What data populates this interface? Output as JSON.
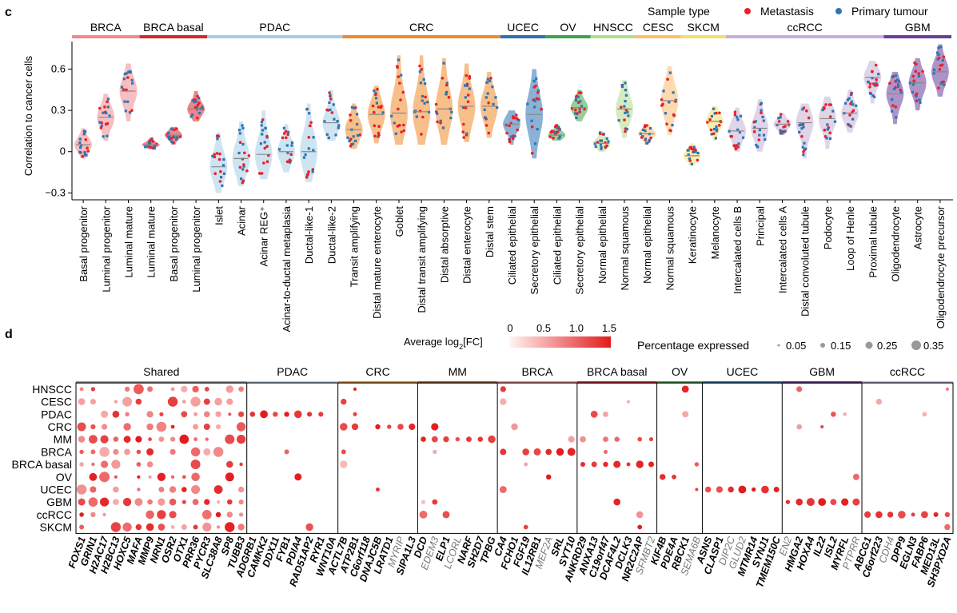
{
  "panel_c": {
    "label": "c"
  },
  "panel_d": {
    "label": "d"
  },
  "legend_c": {
    "title": "Sample type",
    "items": [
      {
        "label": "Metastasis",
        "color": "#e8212a"
      },
      {
        "label": "Primary tumour",
        "color": "#2f75b5"
      }
    ]
  },
  "legend_d": {
    "color_title_pre": "Average log",
    "color_title_sub": "2",
    "color_title_post": "[FC]",
    "color_ticks": [
      "0",
      "0.5",
      "1.0",
      "1.5"
    ],
    "size_title": "Percentage expressed",
    "size_ticks": [
      "0.05",
      "0.15",
      "0.25",
      "0.35"
    ]
  },
  "chart_data": [
    {
      "type": "violin",
      "ylabel": "Correlation to cancer cells",
      "ylim": [
        -0.35,
        0.8
      ],
      "yticks": [
        {
          "value": -0.3,
          "label": "−0.3"
        },
        {
          "value": 0,
          "label": "0"
        },
        {
          "value": 0.3,
          "label": "0.3"
        },
        {
          "value": 0.6,
          "label": "0.6"
        }
      ],
      "groups": [
        {
          "name": "BRCA",
          "color": "#f08a8f",
          "categories": [
            "Basal progenitor",
            "Luminal progenitor",
            "Luminal mature"
          ]
        },
        {
          "name": "BRCA basal",
          "color": "#d7262b",
          "categories": [
            "Luminal mature",
            "Basal progenitor",
            "Luminal progenitor"
          ]
        },
        {
          "name": "PDAC",
          "color": "#a6cde3",
          "categories": [
            "Islet",
            "Acinar",
            "Acinar REG⁺",
            "Acinar-to-ductal metaplasia",
            "Ductal-like-1",
            "Ductal-like-2"
          ]
        },
        {
          "name": "CRC",
          "color": "#f08a28",
          "categories": [
            "Transit amplifying",
            "Distal mature enterocyte",
            "Goblet",
            "Distal transit amplifying",
            "Distal absorptive",
            "Distal enterocyte",
            "Distal stem"
          ]
        },
        {
          "name": "UCEC",
          "color": "#2c73b4",
          "categories": [
            "Ciliated epithelial",
            "Secretory epithelial"
          ]
        },
        {
          "name": "OV",
          "color": "#3ea647",
          "categories": [
            "Ciliated epithelial",
            "Secretory epithelial"
          ]
        },
        {
          "name": "HNSCC",
          "color": "#b2dd8a",
          "categories": [
            "Normal epithelial",
            "Normal squamous"
          ]
        },
        {
          "name": "CESC",
          "color": "#fdbe6e",
          "categories": [
            "Normal epithelial",
            "Normal squamous"
          ]
        },
        {
          "name": "SKCM",
          "color": "#f2e06a",
          "categories": [
            "Keratinocyte",
            "Melanocyte"
          ]
        },
        {
          "name": "ccRCC",
          "color": "#c5b0d5",
          "categories": [
            "Intercalated cells B",
            "Principal",
            "Intercalated cells A",
            "Distal convoluted tubule",
            "Podocyte",
            "Loop of Henle",
            "Proximal tubule"
          ]
        },
        {
          "name": "GBM",
          "color": "#6a3d9a",
          "categories": [
            "Oligodendrocyte",
            "Astrocyte",
            "Oligodendrocyte precursor"
          ]
        }
      ],
      "medians": [
        0.05,
        0.25,
        0.44,
        0.05,
        0.12,
        0.31,
        -0.11,
        -0.05,
        -0.02,
        0.0,
        0.0,
        0.21,
        0.16,
        0.27,
        0.28,
        0.29,
        0.31,
        0.33,
        0.33,
        0.2,
        0.27,
        0.12,
        0.32,
        0.06,
        0.31,
        0.13,
        0.37,
        -0.03,
        0.22,
        0.15,
        0.17,
        0.2,
        0.21,
        0.24,
        0.28,
        0.54,
        0.42,
        0.5,
        0.58
      ],
      "ranges": [
        [
          -0.05,
          0.17
        ],
        [
          0.08,
          0.42
        ],
        [
          0.22,
          0.64
        ],
        [
          0.02,
          0.1
        ],
        [
          0.05,
          0.18
        ],
        [
          0.22,
          0.44
        ],
        [
          -0.3,
          0.14
        ],
        [
          -0.25,
          0.22
        ],
        [
          -0.2,
          0.3
        ],
        [
          -0.15,
          0.2
        ],
        [
          -0.22,
          0.35
        ],
        [
          0.08,
          0.45
        ],
        [
          0.02,
          0.35
        ],
        [
          0.06,
          0.48
        ],
        [
          0.05,
          0.7
        ],
        [
          0.05,
          0.7
        ],
        [
          0.05,
          0.68
        ],
        [
          0.07,
          0.64
        ],
        [
          0.1,
          0.58
        ],
        [
          0.05,
          0.3
        ],
        [
          -0.05,
          0.6
        ],
        [
          0.08,
          0.2
        ],
        [
          0.22,
          0.45
        ],
        [
          0.0,
          0.15
        ],
        [
          0.1,
          0.52
        ],
        [
          0.05,
          0.2
        ],
        [
          0.12,
          0.62
        ],
        [
          -0.1,
          0.06
        ],
        [
          0.08,
          0.33
        ],
        [
          0.0,
          0.32
        ],
        [
          0.0,
          0.38
        ],
        [
          0.12,
          0.28
        ],
        [
          -0.05,
          0.35
        ],
        [
          0.02,
          0.4
        ],
        [
          0.14,
          0.45
        ],
        [
          0.35,
          0.66
        ],
        [
          0.2,
          0.58
        ],
        [
          0.3,
          0.68
        ],
        [
          0.4,
          0.78
        ]
      ]
    },
    {
      "type": "dot-heatmap",
      "rows": [
        "HNSCC",
        "CESC",
        "PDAC",
        "CRC",
        "MM",
        "BRCA",
        "BRCA basal",
        "OV",
        "UCEC",
        "GBM",
        "ccRCC",
        "SKCM"
      ],
      "groups": [
        {
          "name": "Shared",
          "color": "#999999",
          "genes": [
            "FOXS1",
            "GRIN1",
            "H2AC17",
            "H2BC13",
            "HOXC5",
            "MAFA",
            "MMP9",
            "NRN1",
            "OSR2",
            "OTX1",
            "PRR36",
            "PYCR3",
            "SLC38A8",
            "SP8",
            "TUBB3"
          ]
        },
        {
          "name": "PDAC",
          "color": "#a6cde3",
          "genes": [
            "ADGRB1",
            "CAMKK2",
            "DDX11",
            "FYB1",
            "PDIA4",
            "RAD51AP2",
            "RYR1",
            "WNT10A"
          ]
        },
        {
          "name": "CRC",
          "color": "#f08a28",
          "genes": [
            "ACTL7B",
            "ATP2B1",
            "C6orf118",
            "DNAJC5B",
            "LRATD1",
            "MYRIP",
            "SIPA1L3"
          ]
        },
        {
          "name": "MM",
          "color": "#a0612b",
          "genes": [
            "DCD",
            "EDEM3",
            "ELP1",
            "LCORL",
            "NARF",
            "SH2D7",
            "TPBG"
          ]
        },
        {
          "name": "BRCA",
          "color": "#f08a8f",
          "genes": [
            "CA4",
            "FCHO1",
            "FGF19",
            "IL12RB1",
            "MEF2A",
            "SRL",
            "SYT10"
          ]
        },
        {
          "name": "BRCA basal",
          "color": "#d7262b",
          "genes": [
            "ANKRD29",
            "ANXA13",
            "C19orf47",
            "DCAF4L2",
            "DCLK3",
            "NR2C2AP",
            "SFMBT2"
          ]
        },
        {
          "name": "OV",
          "color": "#3ea647",
          "genes": [
            "KIF4B",
            "PDE4A",
            "RBCK1",
            "SEMA6B"
          ]
        },
        {
          "name": "UCEC",
          "color": "#2c73b4",
          "genes": [
            "ASNS",
            "CLASP1",
            "DIP2C",
            "GLUD2",
            "MTMR14",
            "SYNJ1",
            "TMEM150C"
          ]
        },
        {
          "name": "GBM",
          "color": "#6a3d9a",
          "genes": [
            "EN2",
            "HMGA2",
            "HOXA4",
            "IL22",
            "ISL2",
            "MYRFL",
            "PTPRR"
          ]
        },
        {
          "name": "ccRCC",
          "color": "#c5b0d5",
          "genes": [
            "ABCG1",
            "C6orf223",
            "CDH4",
            "DPP9",
            "EGLN3",
            "FABP6",
            "MED13L",
            "SH3PXD2A"
          ]
        }
      ],
      "grey_genes": [
        "MYRIP",
        "EDEM3",
        "LCORL",
        "MEF2A",
        "SFMBT2",
        "SEMA6B",
        "DIP2C",
        "GLUD2",
        "EN2",
        "PTPRR",
        "CDH4"
      ],
      "color_scale": {
        "min": 0,
        "max": 1.5,
        "low": "#fdecea",
        "high": "#e31a1c"
      },
      "size_scale": {
        "min": 0.05,
        "max": 0.35
      }
    }
  ]
}
